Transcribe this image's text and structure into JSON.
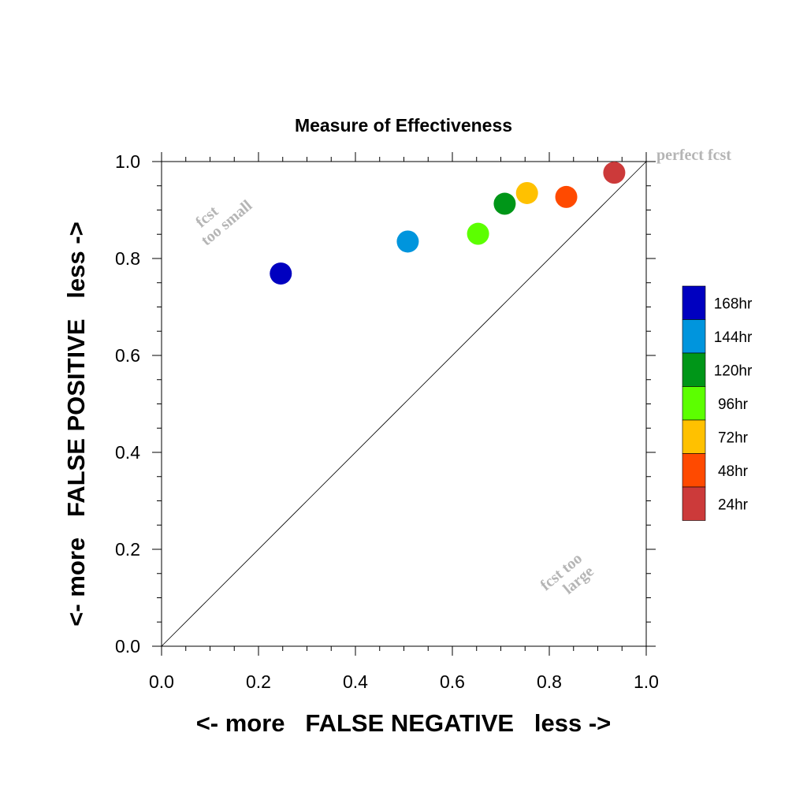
{
  "chart_data": {
    "type": "scatter",
    "title": "Measure of Effectiveness",
    "xlabel": "<- more   FALSE NEGATIVE   less ->",
    "ylabel": "<- more   FALSE POSITIVE   less ->",
    "xlim": [
      0.0,
      1.0
    ],
    "ylim": [
      0.0,
      1.0
    ],
    "xticks": [
      "0.0",
      "0.2",
      "0.4",
      "0.6",
      "0.8",
      "1.0"
    ],
    "yticks": [
      "0.0",
      "0.2",
      "0.4",
      "0.6",
      "0.8",
      "1.0"
    ],
    "grid": false,
    "diagonal_line": true,
    "annotations": [
      "perfect fcst",
      "fcst",
      "too small",
      "fcst too",
      "large"
    ],
    "legend_position": "right",
    "series": [
      {
        "name": "168hr",
        "color": "#0000c0",
        "x": 0.246,
        "y": 0.769
      },
      {
        "name": "144hr",
        "color": "#0095dd",
        "x": 0.508,
        "y": 0.835
      },
      {
        "name": "120hr",
        "color": "#009618",
        "x": 0.708,
        "y": 0.913
      },
      {
        "name": "96hr",
        "color": "#5cff00",
        "x": 0.653,
        "y": 0.851
      },
      {
        "name": "72hr",
        "color": "#ffc100",
        "x": 0.754,
        "y": 0.935
      },
      {
        "name": "48hr",
        "color": "#ff4a00",
        "x": 0.835,
        "y": 0.927
      },
      {
        "name": "24hr",
        "color": "#cc3a3a",
        "x": 0.934,
        "y": 0.977
      }
    ]
  }
}
